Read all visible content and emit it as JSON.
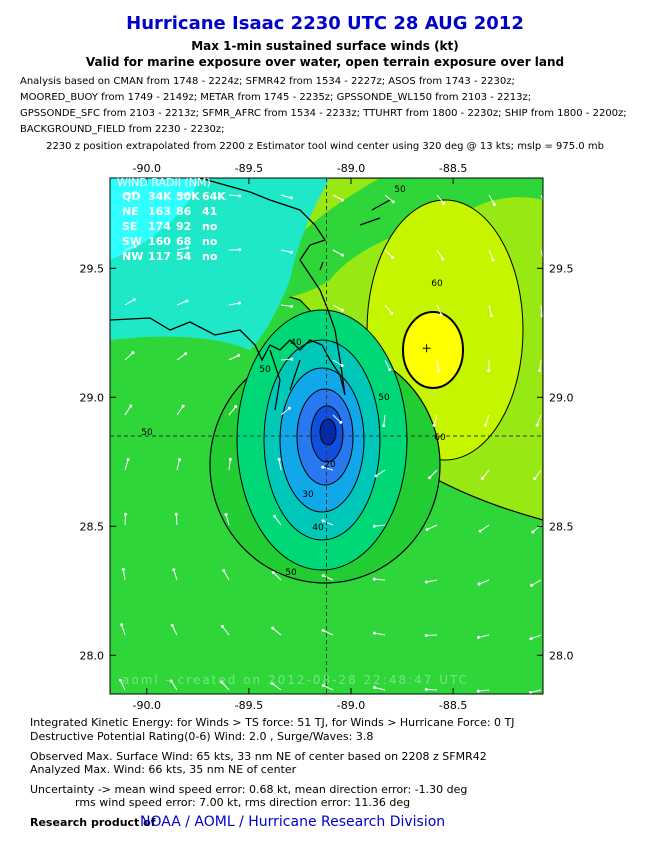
{
  "header": {
    "title": "Hurricane Isaac 2230 UTC 28 AUG 2012",
    "subtitle_lines": [
      "Max 1-min sustained surface winds (kt)",
      "Valid for marine exposure over water, open terrain exposure over land"
    ],
    "analysis_lines": [
      "Analysis based on CMAN from 1748 - 2224z; SFMR42 from 1534 - 2227z; ASOS from 1743 - 2230z;",
      "MOORED_BUOY from 1749 - 2149z; METAR from 1745 - 2235z; GPSSONDE_WL150 from 2103 - 2213z;",
      "GPSSONDE_SFC from 2103 - 2213z; SFMR_AFRC from 1534 - 2233z; TTUHRT from 1800 - 2230z; SHIP from 1800 - 2200z;",
      "BACKGROUND_FIELD from 2230 - 2230z;"
    ],
    "position_line": "2230 z position extrapolated from 2200 z Estimator tool wind center using 320 deg @ 13 kts; mslp = 975.0 mb"
  },
  "map": {
    "xlim": [
      -90.18,
      -88.06
    ],
    "ylim": [
      27.85,
      29.85
    ],
    "xticks": [
      {
        "value": -90,
        "label": "-90.0"
      },
      {
        "value": -89.5,
        "label": "-89.5"
      },
      {
        "value": -89,
        "label": "-89.0"
      },
      {
        "value": -88.5,
        "label": "-88.5"
      }
    ],
    "yticks": [
      {
        "value": 28,
        "label": "28.0"
      },
      28.5,
      {
        "value": 29,
        "label": "29.0"
      },
      29.5
    ],
    "center": {
      "lon": -89.12,
      "lat": 28.85
    },
    "max_wind_location": {
      "lon": -88.63,
      "lat": 29.19
    },
    "contour_labels": [
      "50",
      "60",
      "60",
      "50",
      "50",
      "40",
      "30",
      "20",
      "40",
      "50",
      "50"
    ],
    "wind_radii": {
      "title": "WIND RADII (NM)",
      "header": [
        "QD",
        "34K",
        "50K",
        "64K"
      ],
      "rows": [
        [
          "NE",
          "163",
          "86",
          "41"
        ],
        [
          "SE",
          "174",
          "92",
          "no"
        ],
        [
          "SW",
          "160",
          "68",
          "no"
        ],
        [
          "NW",
          "117",
          "54",
          "no"
        ]
      ]
    },
    "watermark": "aoml - created on 2012-08-28 22:48:47 UTC"
  },
  "footer": {
    "lines": [
      "Integrated Kinetic Energy: for Winds > TS force: 51 TJ, for Winds > Hurricane Force: 0 TJ",
      "Destructive Potential Rating(0-6)  Wind: 2.0 , Surge/Waves: 3.8",
      "Observed Max. Surface Wind: 65 kts, 33 nm NE of center based on 2208 z SFMR42",
      "Analyzed Max. Wind: 66 kts, 35 nm  NE of center",
      "Uncertainty -> mean wind speed error: 0.68 kt, mean direction error:  -1.30 deg",
      "rms wind speed error: 7.00 kt, rms direction error: 11.36 deg"
    ],
    "credit_prefix": "Research product of",
    "credit": "NOAA / AOML / Hurricane Research Division"
  }
}
